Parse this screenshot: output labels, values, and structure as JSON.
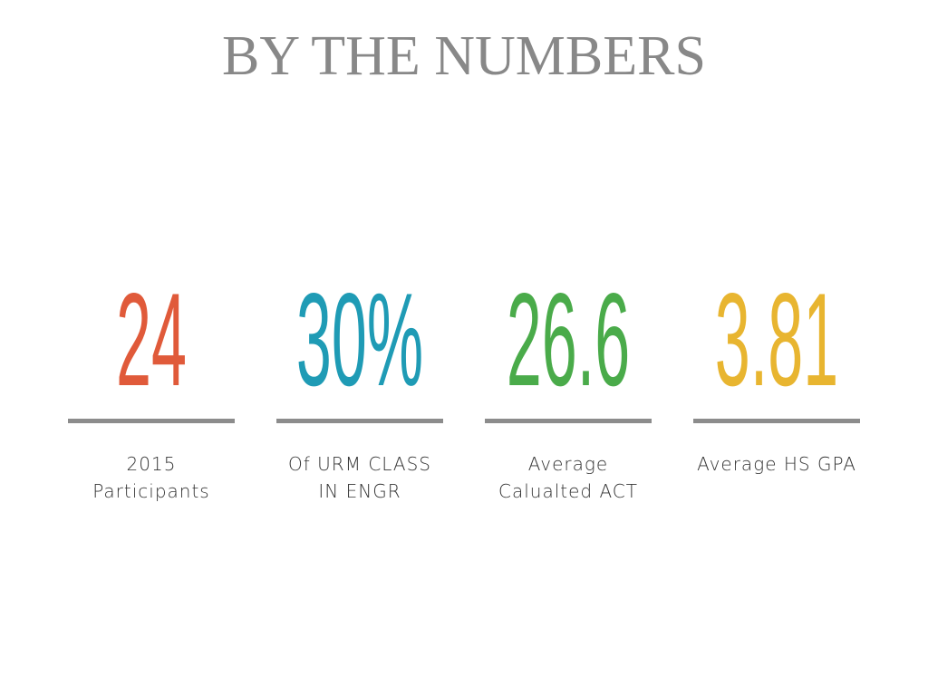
{
  "header": {
    "title": "BY THE NUMBERS"
  },
  "stats": [
    {
      "value": "24",
      "color": "#e05a3a",
      "label": [
        "2015",
        "Participants"
      ]
    },
    {
      "value": "30%",
      "color": "#1f9bb5",
      "label": [
        "Of URM CLASS",
        "IN ENGR"
      ]
    },
    {
      "value": "26.6",
      "color": "#4aab4a",
      "label": [
        "Average",
        "Calualted ACT"
      ]
    },
    {
      "value": "3.81",
      "color": "#e8b530",
      "label": [
        "Average HS GPA"
      ]
    }
  ]
}
